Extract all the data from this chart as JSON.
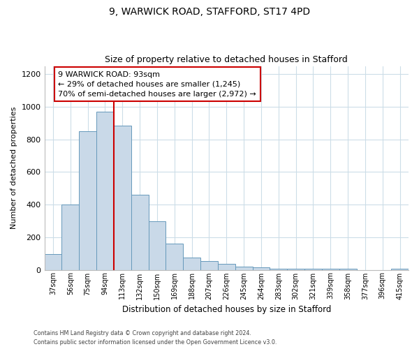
{
  "title1": "9, WARWICK ROAD, STAFFORD, ST17 4PD",
  "title2": "Size of property relative to detached houses in Stafford",
  "xlabel": "Distribution of detached houses by size in Stafford",
  "ylabel": "Number of detached properties",
  "bar_labels": [
    "37sqm",
    "56sqm",
    "75sqm",
    "94sqm",
    "113sqm",
    "132sqm",
    "150sqm",
    "169sqm",
    "188sqm",
    "207sqm",
    "226sqm",
    "245sqm",
    "264sqm",
    "283sqm",
    "302sqm",
    "321sqm",
    "339sqm",
    "358sqm",
    "377sqm",
    "396sqm",
    "415sqm"
  ],
  "bar_values": [
    95,
    400,
    848,
    968,
    883,
    460,
    297,
    160,
    73,
    52,
    35,
    20,
    15,
    5,
    5,
    5,
    5,
    5,
    0,
    0,
    5
  ],
  "bar_color": "#c9d9e8",
  "bar_edge_color": "#6699bb",
  "property_line_x": 3.5,
  "property_line_color": "#cc0000",
  "annotation_box_title": "9 WARWICK ROAD: 93sqm",
  "annotation_line1": "← 29% of detached houses are smaller (1,245)",
  "annotation_line2": "70% of semi-detached houses are larger (2,972) →",
  "annotation_box_edge_color": "#cc0000",
  "ylim": [
    0,
    1250
  ],
  "yticks": [
    0,
    200,
    400,
    600,
    800,
    1000,
    1200
  ],
  "footnote1": "Contains HM Land Registry data © Crown copyright and database right 2024.",
  "footnote2": "Contains public sector information licensed under the Open Government Licence v3.0.",
  "background_color": "#ffffff",
  "grid_color": "#ccdde8"
}
